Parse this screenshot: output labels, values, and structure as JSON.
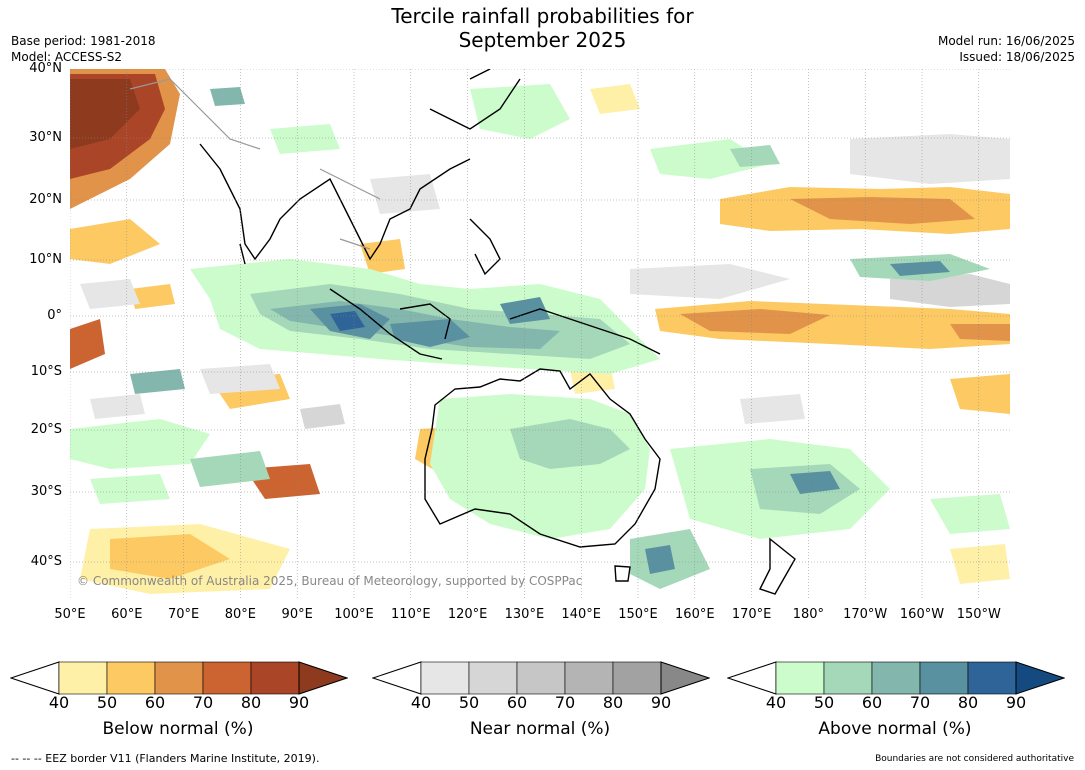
{
  "title_line1": "Tercile rainfall probabilities for",
  "title_line2": "September 2025",
  "meta_left": [
    "Base period: 1981-2018",
    "Model: ACCESS-S2"
  ],
  "meta_right": [
    "Model run: 16/06/2025",
    "Issued: 18/06/2025"
  ],
  "copyright": "© Commonwealth of Australia 2025, Bureau of Meteorology, supported by COSPPac",
  "lat_labels": [
    "40°N",
    "30°N",
    "20°N",
    "10°N",
    "0°",
    "10°S",
    "20°S",
    "30°S",
    "40°S"
  ],
  "lon_labels": [
    "50°E",
    "60°E",
    "70°E",
    "80°E",
    "90°E",
    "100°E",
    "110°E",
    "120°E",
    "130°E",
    "140°E",
    "150°E",
    "160°E",
    "170°E",
    "180°",
    "170°W",
    "160°W",
    "150°W"
  ],
  "colorbars": [
    {
      "title": "Below normal (%)",
      "ticks": [
        "40",
        "50",
        "60",
        "70",
        "80",
        "90"
      ],
      "colors": [
        "#fff0a8",
        "#fdc963",
        "#e1934a",
        "#cb6431",
        "#aa4528"
      ],
      "over": "#8e3a1e"
    },
    {
      "title": "Near normal (%)",
      "ticks": [
        "40",
        "50",
        "60",
        "70",
        "80",
        "90"
      ],
      "colors": [
        "#e6e6e6",
        "#d6d6d6",
        "#c6c6c6",
        "#b4b4b4",
        "#a2a2a2"
      ],
      "over": "#888888"
    },
    {
      "title": "Above normal (%)",
      "ticks": [
        "40",
        "50",
        "60",
        "70",
        "80",
        "90"
      ],
      "colors": [
        "#ccfccc",
        "#a4d8b8",
        "#83b7ae",
        "#5991a1",
        "#2e6498"
      ],
      "over": "#154a80"
    }
  ],
  "footer_left": "--  --  -- EEZ border V11 (Flanders Marine Institute, 2019).",
  "footer_right": "Boundaries are not considered authoritative"
}
